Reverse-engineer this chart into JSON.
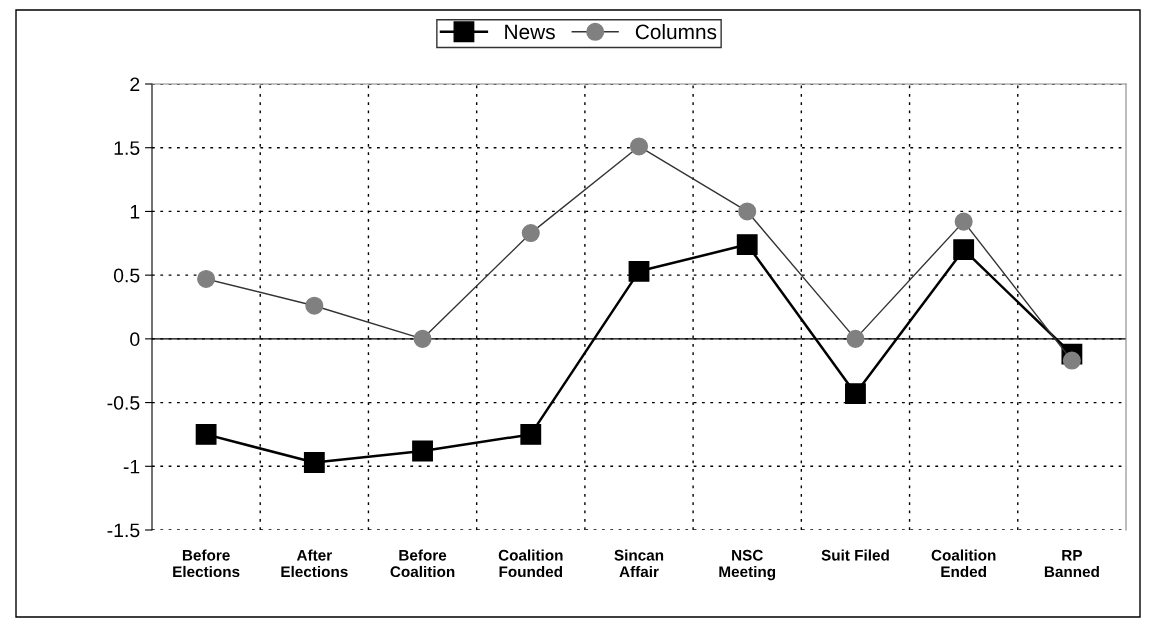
{
  "chart_data": {
    "type": "line",
    "categories": [
      "Before\nElections",
      "After\nElections",
      "Before\nCoalition",
      "Coalition\nFounded",
      "Sincan\nAffair",
      "NSC\nMeeting",
      "Suit Filed",
      "Coalition\nEnded",
      "RP\nBanned"
    ],
    "series": [
      {
        "name": "News",
        "color": "#000000",
        "marker": "square",
        "values": [
          -0.75,
          -0.97,
          -0.88,
          -0.75,
          0.53,
          0.74,
          -0.43,
          0.7,
          -0.12
        ]
      },
      {
        "name": "Columns",
        "color": "#808080",
        "marker": "circle",
        "values": [
          0.47,
          0.26,
          0.0,
          0.83,
          1.51,
          1.0,
          0.0,
          0.92,
          -0.17
        ]
      }
    ],
    "ylim": [
      -1.5,
      2
    ],
    "yticks": [
      {
        "value": -1.5,
        "label": "-1.5"
      },
      {
        "value": -1,
        "label": "-1"
      },
      {
        "value": -0.5,
        "label": "-0.5"
      },
      0,
      0.5,
      1,
      1.5,
      2
    ],
    "ref_lines": [
      {
        "axis": "y",
        "value": 0,
        "color": "#000000"
      }
    ],
    "grid": true,
    "legend": "top",
    "line_style": "solid"
  }
}
